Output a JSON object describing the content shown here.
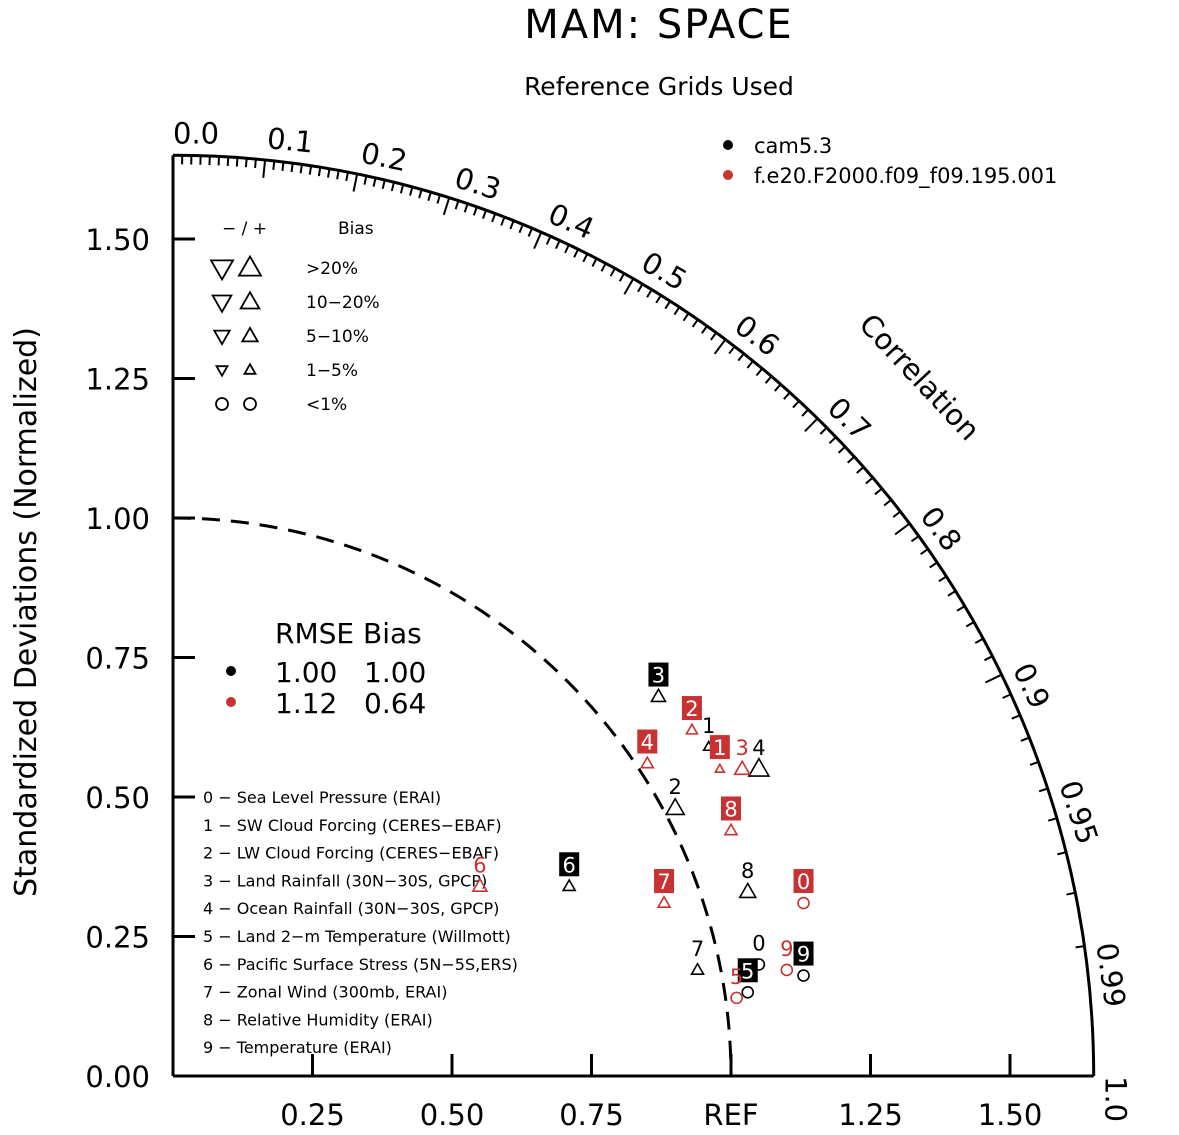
{
  "title": "MAM: SPACE",
  "subtitle": "Reference Grids Used",
  "chart_data": {
    "type": "taylor",
    "ylabel": "Standardized Deviations (Normalized)",
    "ref_label": "REF",
    "corr_label": "Correlation",
    "std_range": [
      0,
      1.65
    ],
    "y_ticks": [
      "0.00",
      "0.25",
      "0.50",
      "0.75",
      "1.00",
      "1.25",
      "1.50"
    ],
    "x_ticks": [
      "0.25",
      "0.50",
      "0.75",
      "REF",
      "1.25",
      "1.50"
    ],
    "corr_ticks": [
      {
        "value": 0.0,
        "label": "0.0"
      },
      {
        "value": 0.1,
        "label": "0.1"
      },
      {
        "value": 0.2,
        "label": "0.2"
      },
      {
        "value": 0.3,
        "label": "0.3"
      },
      {
        "value": 0.4,
        "label": "0.4"
      },
      {
        "value": 0.5,
        "label": "0.5"
      },
      {
        "value": 0.6,
        "label": "0.6"
      },
      {
        "value": 0.7,
        "label": "0.7"
      },
      {
        "value": 0.8,
        "label": "0.8"
      },
      {
        "value": 0.9,
        "label": "0.9"
      },
      {
        "value": 0.95,
        "label": "0.95"
      },
      {
        "value": 0.99,
        "label": "0.99"
      },
      {
        "value": 1.0,
        "label": "1.0"
      }
    ],
    "models": [
      {
        "name": "cam5.3",
        "color": "#000000"
      },
      {
        "name": "f.e20.F2000.f09_f09.195.001",
        "color": "#c83232"
      }
    ],
    "bias_legend": {
      "header_signs": "− / +",
      "header_label": "Bias",
      "rows": [
        {
          "label": ">20%",
          "size": 1.0,
          "shape": "triangle"
        },
        {
          "label": "10−20%",
          "size": 0.85,
          "shape": "triangle"
        },
        {
          "label": "5−10%",
          "size": 0.7,
          "shape": "triangle"
        },
        {
          "label": "1−5%",
          "size": 0.5,
          "shape": "triangle"
        },
        {
          "label": "<1%",
          "size": 0.7,
          "shape": "circle"
        }
      ]
    },
    "stats_header": "RMSE Bias",
    "stats": [
      {
        "rmse": "1.00",
        "bias": "1.00",
        "color": "#000000"
      },
      {
        "rmse": "1.12",
        "bias": "0.64",
        "color": "#c83232"
      }
    ],
    "variables": [
      "0 − Sea Level Pressure (ERAI)",
      "1 − SW Cloud Forcing (CERES−EBAF)",
      "2 − LW Cloud Forcing (CERES−EBAF)",
      "3 − Land Rainfall (30N−30S, GPCP)",
      "4 − Ocean Rainfall (30N−30S, GPCP)",
      "5 − Land 2−m Temperature (Willmott)",
      "6 − Pacific Surface Stress (5N−5S,ERS)",
      "7 − Zonal Wind (300mb, ERAI)",
      "8 − Relative Humidity (ERAI)",
      "9 − Temperature (ERAI)"
    ],
    "points": [
      {
        "model": 0,
        "id": "0",
        "x": 1.05,
        "y": 0.2,
        "shape": "circle",
        "size": 0.6,
        "boxed": false
      },
      {
        "model": 0,
        "id": "1",
        "x": 0.96,
        "y": 0.59,
        "shape": "up",
        "size": 0.5,
        "boxed": false
      },
      {
        "model": 0,
        "id": "2",
        "x": 0.9,
        "y": 0.48,
        "shape": "up",
        "size": 0.9,
        "boxed": false
      },
      {
        "model": 0,
        "id": "3",
        "x": 0.87,
        "y": 0.68,
        "shape": "up",
        "size": 0.7,
        "boxed": true
      },
      {
        "model": 0,
        "id": "4",
        "x": 1.05,
        "y": 0.55,
        "shape": "up",
        "size": 1.0,
        "boxed": false
      },
      {
        "model": 0,
        "id": "5",
        "x": 1.03,
        "y": 0.15,
        "shape": "circle",
        "size": 0.6,
        "boxed": true
      },
      {
        "model": 0,
        "id": "6",
        "x": 0.71,
        "y": 0.34,
        "shape": "up",
        "size": 0.6,
        "boxed": true
      },
      {
        "model": 0,
        "id": "7",
        "x": 0.94,
        "y": 0.19,
        "shape": "up",
        "size": 0.6,
        "boxed": false
      },
      {
        "model": 0,
        "id": "8",
        "x": 1.03,
        "y": 0.33,
        "shape": "up",
        "size": 0.8,
        "boxed": false
      },
      {
        "model": 0,
        "id": "9",
        "x": 1.13,
        "y": 0.18,
        "shape": "circle",
        "size": 0.6,
        "boxed": true
      },
      {
        "model": 1,
        "id": "0",
        "x": 1.13,
        "y": 0.31,
        "shape": "circle",
        "size": 0.6,
        "boxed": true
      },
      {
        "model": 1,
        "id": "1",
        "x": 0.98,
        "y": 0.55,
        "shape": "up",
        "size": 0.45,
        "boxed": true
      },
      {
        "model": 1,
        "id": "2",
        "x": 0.93,
        "y": 0.62,
        "shape": "up",
        "size": 0.55,
        "boxed": true
      },
      {
        "model": 1,
        "id": "3",
        "x": 1.02,
        "y": 0.55,
        "shape": "up",
        "size": 0.75,
        "boxed": false
      },
      {
        "model": 1,
        "id": "4",
        "x": 0.85,
        "y": 0.56,
        "shape": "up",
        "size": 0.6,
        "boxed": true
      },
      {
        "model": 1,
        "id": "5",
        "x": 1.01,
        "y": 0.14,
        "shape": "circle",
        "size": 0.6,
        "boxed": false
      },
      {
        "model": 1,
        "id": "6",
        "x": 0.55,
        "y": 0.34,
        "shape": "up",
        "size": 0.7,
        "boxed": false
      },
      {
        "model": 1,
        "id": "7",
        "x": 0.88,
        "y": 0.31,
        "shape": "up",
        "size": 0.6,
        "boxed": true
      },
      {
        "model": 1,
        "id": "8",
        "x": 1.0,
        "y": 0.44,
        "shape": "up",
        "size": 0.6,
        "boxed": true
      },
      {
        "model": 1,
        "id": "9",
        "x": 1.1,
        "y": 0.19,
        "shape": "circle",
        "size": 0.6,
        "boxed": false
      }
    ]
  }
}
